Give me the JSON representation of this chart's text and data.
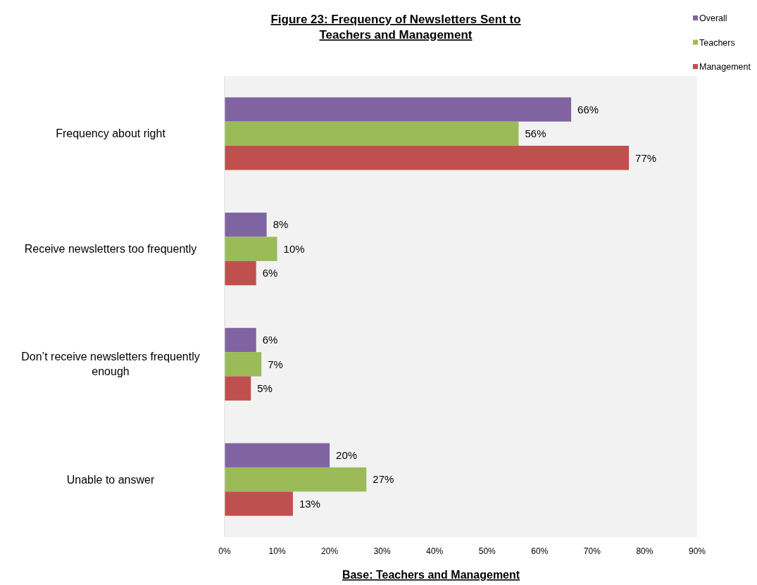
{
  "chart_data": {
    "type": "bar",
    "orientation": "horizontal",
    "title": "Figure 23:  Frequency  of Newsletters  Sent  to Teachers  and Management",
    "xlabel": "Base:  Teachers and Management",
    "categories": [
      "Frequency about right",
      "Receive newsletters too frequently",
      "Don’t receive newsletters frequently enough",
      "Unable to answer"
    ],
    "series": [
      {
        "name": "Overall",
        "color": "#8064a2",
        "values": [
          66,
          8,
          6,
          20
        ],
        "value_labels": [
          "66%",
          "8%",
          "6%",
          "20%"
        ]
      },
      {
        "name": "Teachers",
        "color": "#9bbb59",
        "values": [
          56,
          10,
          7,
          27
        ],
        "value_labels": [
          "56%",
          "10%",
          "7%",
          "27%"
        ]
      },
      {
        "name": "Management",
        "color": "#c0504d",
        "values": [
          77,
          6,
          5,
          13
        ],
        "value_labels": [
          "77%",
          "6%",
          "5%",
          "13%"
        ]
      }
    ],
    "xlim": [
      0,
      90
    ],
    "xticks": [
      {
        "value": 0,
        "label": "0%"
      },
      {
        "value": 10,
        "label": "10%"
      },
      {
        "value": 20,
        "label": "20%"
      },
      {
        "value": 30,
        "label": "30%"
      },
      {
        "value": 40,
        "label": "40%"
      },
      {
        "value": 50,
        "label": "50%"
      },
      {
        "value": 60,
        "label": "60%"
      },
      {
        "value": 70,
        "label": "70%"
      },
      {
        "value": 80,
        "label": "80%"
      },
      {
        "value": 90,
        "label": "90%"
      }
    ],
    "legend": "top right"
  }
}
